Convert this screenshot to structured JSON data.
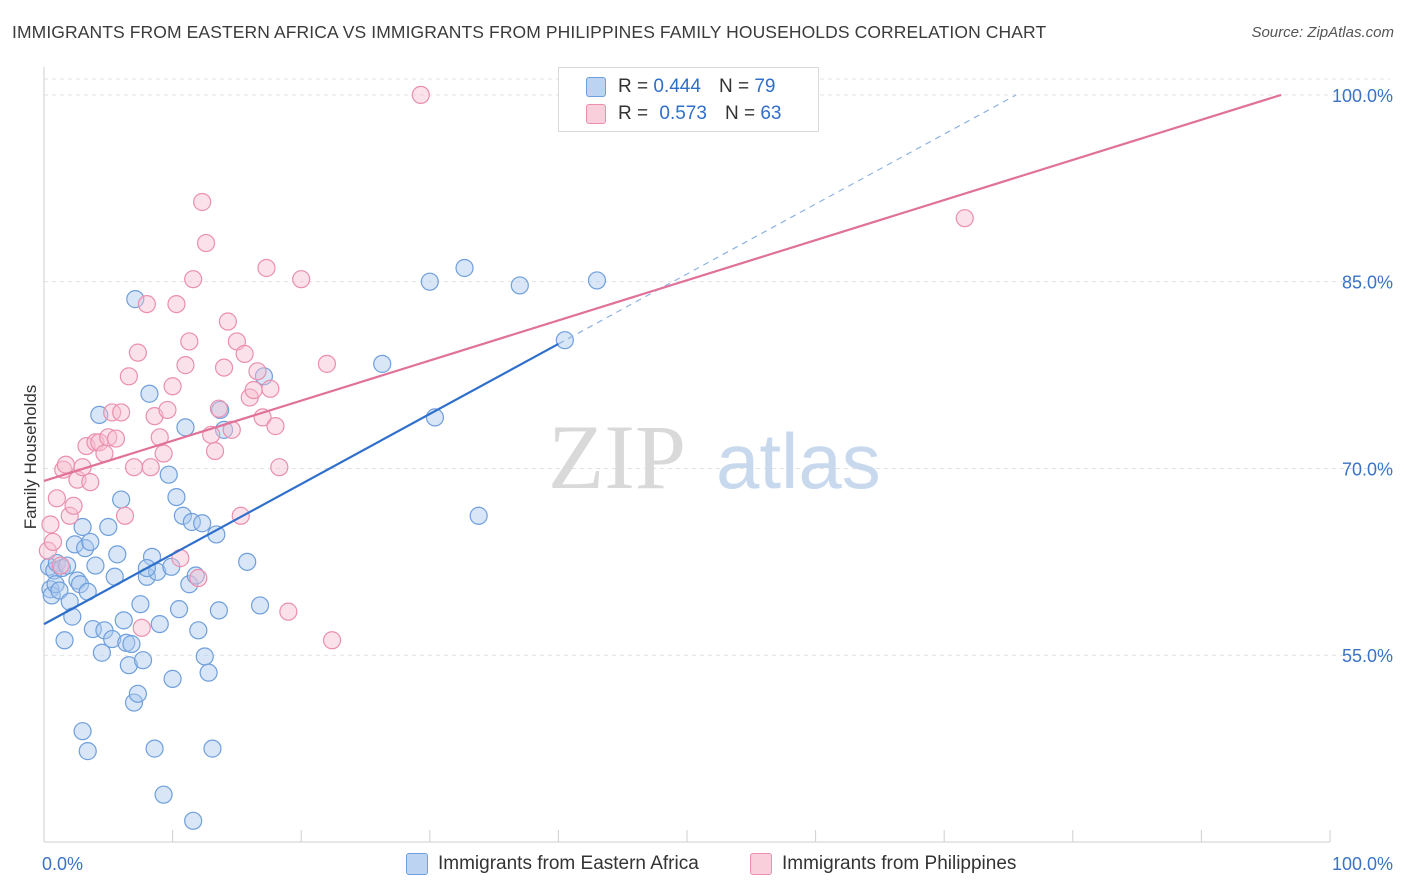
{
  "title": "IMMIGRANTS FROM EASTERN AFRICA VS IMMIGRANTS FROM PHILIPPINES FAMILY HOUSEHOLDS CORRELATION CHART",
  "source": "Source: ZipAtlas.com",
  "watermark": {
    "zip": "ZIP",
    "atlas": "atlas"
  },
  "legend": {
    "r_label": "R =",
    "n_label": "N =",
    "series1": {
      "r": "0.444",
      "n": "79"
    },
    "series2": {
      "r": "0.573",
      "n": "63"
    }
  },
  "bottom_legend": {
    "series1": "Immigrants from Eastern Africa",
    "series2": "Immigrants from Philippines"
  },
  "colors": {
    "blue_fill": "#a9c8ee",
    "blue_stroke": "#6f9fdc",
    "blue_line": "#2f6fcc",
    "pink_fill": "#f6bfd0",
    "pink_stroke": "#ea8fae",
    "pink_line": "#e0729a",
    "tick_text": "#3a73c6",
    "grid": "#e2e2e2"
  },
  "chart_data": {
    "type": "scatter",
    "title": "IMMIGRANTS FROM EASTERN AFRICA VS IMMIGRANTS FROM PHILIPPINES FAMILY HOUSEHOLDS CORRELATION CHART",
    "xlabel": "",
    "ylabel": "Family Households",
    "xlim": [
      0,
      100
    ],
    "ylim": [
      40,
      102
    ],
    "x_tick_labels": [
      {
        "value": 0,
        "label": "0.0%"
      },
      {
        "value": 100,
        "label": "100.0%"
      }
    ],
    "x_minor_ticks": [
      10,
      20,
      30,
      40,
      50,
      60,
      70,
      80,
      90,
      100
    ],
    "y_ticks": [
      {
        "value": 55,
        "label": "55.0%"
      },
      {
        "value": 70,
        "label": "70.0%"
      },
      {
        "value": 85,
        "label": "85.0%"
      },
      {
        "value": 100,
        "label": "100.0%"
      }
    ],
    "series": [
      {
        "name": "Immigrants from Eastern Africa",
        "color": "blue",
        "points": [
          [
            0.4,
            62.1
          ],
          [
            0.5,
            60.3
          ],
          [
            0.6,
            59.8
          ],
          [
            0.8,
            61.8
          ],
          [
            0.9,
            60.7
          ],
          [
            1.0,
            62.4
          ],
          [
            1.2,
            60.2
          ],
          [
            1.4,
            62.0
          ],
          [
            1.6,
            56.2
          ],
          [
            1.8,
            62.2
          ],
          [
            2.0,
            59.3
          ],
          [
            2.2,
            58.1
          ],
          [
            2.4,
            63.9
          ],
          [
            2.6,
            61.0
          ],
          [
            2.8,
            60.7
          ],
          [
            3.0,
            65.3
          ],
          [
            3.2,
            63.6
          ],
          [
            3.4,
            60.1
          ],
          [
            3.6,
            64.1
          ],
          [
            3.8,
            57.1
          ],
          [
            4.0,
            62.2
          ],
          [
            4.3,
            74.3
          ],
          [
            4.5,
            55.2
          ],
          [
            4.7,
            57.0
          ],
          [
            5.0,
            65.3
          ],
          [
            5.3,
            56.3
          ],
          [
            5.5,
            61.3
          ],
          [
            5.7,
            63.1
          ],
          [
            6.0,
            67.5
          ],
          [
            6.2,
            57.8
          ],
          [
            6.4,
            56.0
          ],
          [
            6.6,
            54.2
          ],
          [
            6.8,
            55.9
          ],
          [
            7.0,
            51.2
          ],
          [
            7.3,
            51.9
          ],
          [
            7.5,
            59.1
          ],
          [
            7.7,
            54.6
          ],
          [
            8.0,
            61.3
          ],
          [
            8.2,
            76.0
          ],
          [
            8.4,
            62.9
          ],
          [
            8.6,
            47.5
          ],
          [
            8.8,
            61.7
          ],
          [
            9.0,
            57.5
          ],
          [
            9.3,
            43.8
          ],
          [
            9.7,
            69.5
          ],
          [
            10.0,
            53.1
          ],
          [
            10.3,
            67.7
          ],
          [
            10.5,
            58.7
          ],
          [
            10.8,
            66.2
          ],
          [
            11.0,
            73.3
          ],
          [
            11.3,
            60.7
          ],
          [
            11.5,
            65.7
          ],
          [
            11.8,
            61.4
          ],
          [
            12.0,
            57.0
          ],
          [
            12.3,
            65.6
          ],
          [
            12.5,
            54.9
          ],
          [
            12.8,
            53.6
          ],
          [
            13.1,
            47.5
          ],
          [
            13.4,
            64.7
          ],
          [
            13.7,
            74.7
          ],
          [
            14.0,
            73.1
          ],
          [
            7.1,
            83.6
          ],
          [
            3.0,
            48.9
          ],
          [
            3.4,
            47.3
          ],
          [
            11.6,
            41.7
          ],
          [
            16.8,
            59.0
          ],
          [
            17.1,
            77.4
          ],
          [
            26.3,
            78.4
          ],
          [
            30.0,
            85.0
          ],
          [
            32.7,
            86.1
          ],
          [
            30.4,
            74.1
          ],
          [
            33.8,
            66.2
          ],
          [
            37.0,
            84.7
          ],
          [
            40.5,
            80.3
          ],
          [
            43.0,
            85.1
          ],
          [
            9.9,
            62.1
          ],
          [
            13.6,
            58.6
          ],
          [
            15.8,
            62.5
          ],
          [
            8.0,
            62.0
          ]
        ]
      },
      {
        "name": "Immigrants from Philippines",
        "color": "pink",
        "points": [
          [
            0.3,
            63.4
          ],
          [
            0.5,
            65.5
          ],
          [
            0.7,
            64.1
          ],
          [
            1.0,
            67.6
          ],
          [
            1.3,
            62.2
          ],
          [
            1.5,
            69.9
          ],
          [
            1.7,
            70.3
          ],
          [
            2.0,
            66.2
          ],
          [
            2.3,
            67.0
          ],
          [
            2.6,
            69.1
          ],
          [
            3.0,
            70.1
          ],
          [
            3.3,
            71.8
          ],
          [
            3.6,
            68.9
          ],
          [
            4.0,
            72.1
          ],
          [
            4.3,
            72.1
          ],
          [
            4.7,
            71.2
          ],
          [
            5.0,
            72.5
          ],
          [
            5.3,
            74.5
          ],
          [
            5.6,
            72.4
          ],
          [
            6.0,
            74.5
          ],
          [
            6.3,
            66.2
          ],
          [
            6.6,
            77.4
          ],
          [
            7.0,
            70.1
          ],
          [
            7.3,
            79.3
          ],
          [
            7.6,
            57.2
          ],
          [
            8.0,
            83.2
          ],
          [
            8.3,
            70.1
          ],
          [
            8.6,
            74.2
          ],
          [
            9.0,
            72.5
          ],
          [
            9.3,
            71.2
          ],
          [
            9.6,
            74.7
          ],
          [
            10.0,
            76.6
          ],
          [
            10.3,
            83.2
          ],
          [
            10.6,
            62.8
          ],
          [
            11.0,
            78.3
          ],
          [
            11.3,
            80.2
          ],
          [
            11.6,
            85.2
          ],
          [
            12.0,
            61.2
          ],
          [
            12.3,
            91.4
          ],
          [
            12.6,
            88.1
          ],
          [
            13.0,
            72.7
          ],
          [
            13.3,
            71.4
          ],
          [
            13.6,
            74.8
          ],
          [
            14.0,
            78.1
          ],
          [
            14.3,
            81.8
          ],
          [
            14.6,
            73.1
          ],
          [
            15.0,
            80.2
          ],
          [
            15.3,
            66.2
          ],
          [
            15.6,
            79.2
          ],
          [
            16.0,
            75.7
          ],
          [
            16.3,
            76.3
          ],
          [
            16.6,
            77.8
          ],
          [
            17.0,
            74.1
          ],
          [
            17.3,
            86.1
          ],
          [
            17.6,
            76.4
          ],
          [
            18.0,
            73.4
          ],
          [
            18.3,
            70.1
          ],
          [
            19.0,
            58.5
          ],
          [
            20.0,
            85.2
          ],
          [
            22.0,
            78.4
          ],
          [
            22.4,
            56.2
          ],
          [
            29.3,
            100.0
          ],
          [
            71.6,
            90.1
          ]
        ]
      }
    ],
    "trend_lines": [
      {
        "series": "Immigrants from Eastern Africa",
        "x0": 0,
        "y0": 57.5,
        "x1": 40,
        "y1": 80.0,
        "extended_to_x": 75.6,
        "extended_to_y": 100.0,
        "extension_style": "dashed"
      },
      {
        "series": "Immigrants from Philippines",
        "x0": 0,
        "y0": 69.0,
        "x1": 96.2,
        "y1": 100.0
      }
    ]
  }
}
